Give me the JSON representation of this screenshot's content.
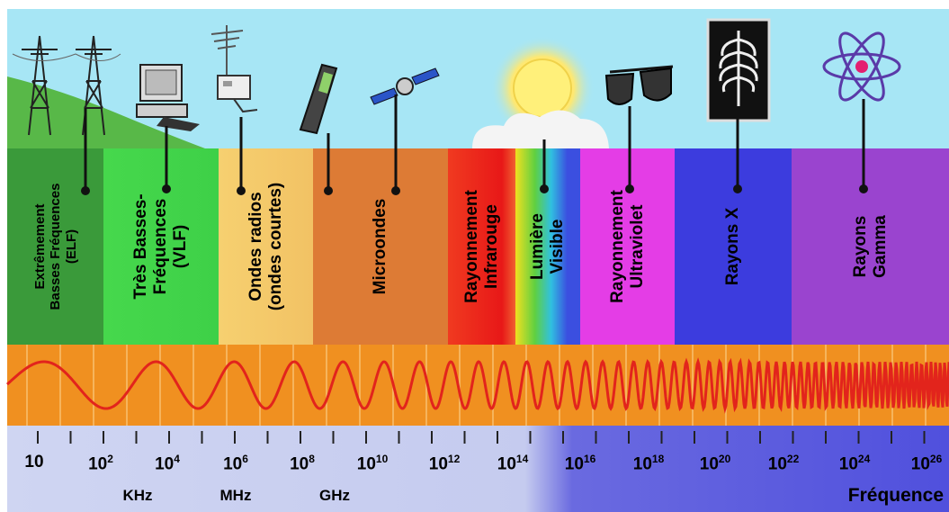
{
  "bands": [
    {
      "id": "elf",
      "lines": [
        "Extrêmement",
        "Basses Fréquences",
        "(ELF)"
      ],
      "color": "#3a9a3a"
    },
    {
      "id": "vlf",
      "lines": [
        "Très Basses-",
        "Fréquences",
        "(VLF)"
      ],
      "color": "#41d24a"
    },
    {
      "id": "radio",
      "lines": [
        "Ondes radios",
        "(ondes courtes)"
      ],
      "color": "#f3c56a"
    },
    {
      "id": "micro",
      "lines": [
        "Microondes"
      ],
      "color": "#dd7b35"
    },
    {
      "id": "ir",
      "lines": [
        "Rayonnement",
        "Infrarouge"
      ],
      "color": "#ee2222"
    },
    {
      "id": "visible",
      "lines": [
        "Lumière",
        "Visible"
      ],
      "color": "#3b4fe0"
    },
    {
      "id": "uv",
      "lines": [
        "Rayonnement",
        "Ultraviolet"
      ],
      "color": "#e43de6"
    },
    {
      "id": "xray",
      "lines": [
        "Rayons X"
      ],
      "color": "#3c3cde"
    },
    {
      "id": "gamma",
      "lines": [
        "Rayons",
        "Gamma"
      ],
      "color": "#9a44cf"
    }
  ],
  "scale": {
    "ticks": [
      {
        "base": "10",
        "exp": ""
      },
      {
        "base": "10",
        "exp": "2"
      },
      {
        "base": "10",
        "exp": "4"
      },
      {
        "base": "10",
        "exp": "6"
      },
      {
        "base": "10",
        "exp": "8"
      },
      {
        "base": "10",
        "exp": "10"
      },
      {
        "base": "10",
        "exp": "12"
      },
      {
        "base": "10",
        "exp": "14"
      },
      {
        "base": "10",
        "exp": "16"
      },
      {
        "base": "10",
        "exp": "18"
      },
      {
        "base": "10",
        "exp": "20"
      },
      {
        "base": "10",
        "exp": "22"
      },
      {
        "base": "10",
        "exp": "24"
      },
      {
        "base": "10",
        "exp": "26"
      }
    ],
    "units": [
      "KHz",
      "MHz",
      "GHz"
    ],
    "axis_title": "Fréquence"
  },
  "icons": [
    "power-line-tower-icon",
    "computer-icon",
    "radio-antenna-icon",
    "mobile-phone-icon",
    "satellite-icon",
    "sun-icon",
    "sunglasses-icon",
    "xray-film-icon",
    "atom-icon"
  ],
  "colors": {
    "sky": "#a7e6f5",
    "wave_strip": "#f09020",
    "wave": "#e2241c"
  }
}
